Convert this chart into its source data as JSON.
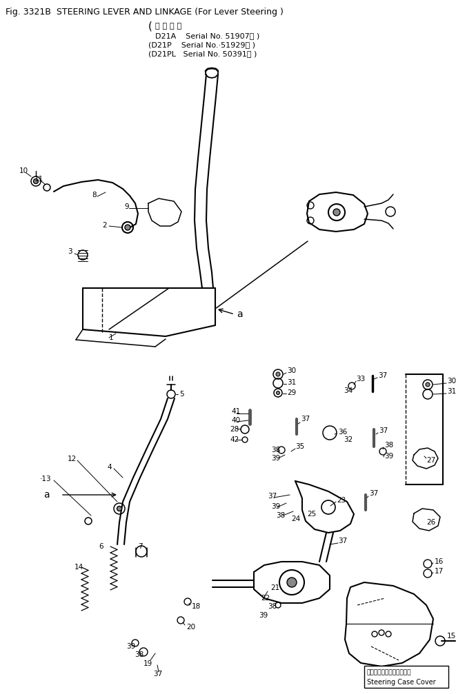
{
  "title_line1": "Fig. 3321B  STEERING LEVER AND LINKAGE (For Lever Steering )",
  "subtitle_d21a": "D21A    Serial No. 51907∼ )",
  "subtitle_d21p": "(D21P    Serial No.·51929∼ )",
  "subtitle_d21pl": "(D21PL   Serial No. 50391∼ )",
  "bottom_label_jp": "ステアリングケースカバー",
  "bottom_label_en": "Steering Case Cover",
  "bg_color": "#ffffff",
  "figsize": [
    6.9,
    10.07
  ],
  "dpi": 100
}
